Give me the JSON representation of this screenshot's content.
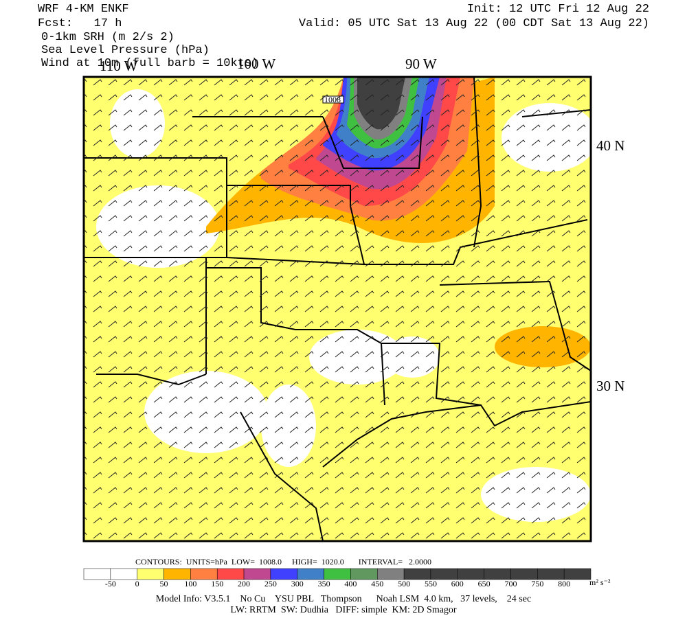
{
  "header": {
    "model": "WRF 4-KM ENKF",
    "forecast": "Fcst:   17 h",
    "fields": [
      "0-1km SRH (m 2/s 2)",
      "Sea Level Pressure (hPa)",
      "Wind at 10m (full barb = 10kts)"
    ],
    "init": "Init: 12 UTC Fri 12 Aug 22",
    "valid": "Valid: 05 UTC Sat 13 Aug 22 (00 CDT Sat 13 Aug 22)"
  },
  "map": {
    "lon_labels": [
      "110 W",
      "100 W",
      "90 W"
    ],
    "lat_labels": [
      "40 N",
      "30 N"
    ],
    "contour_label": "1008"
  },
  "contours": "CONTOURS:  UNITS=hPa  LOW=  1008.0     HIGH=  1020.0       INTERVAL=   2.0000",
  "colorbar": {
    "levels": [
      -50,
      0,
      50,
      100,
      150,
      200,
      250,
      300,
      350,
      400,
      450,
      500,
      550,
      600,
      650,
      700,
      750,
      800
    ],
    "units": "m² s⁻²",
    "colors": [
      "#ffffff",
      "#ffffff",
      "#ffff70",
      "#ffb400",
      "#ff8040",
      "#ff4848",
      "#c04890",
      "#4040ff",
      "#4080c8",
      "#40c040",
      "#609860",
      "#808080",
      "#404040",
      "#404040",
      "#404040",
      "#404040",
      "#404040",
      "#404040",
      "#404040"
    ]
  },
  "footer": [
    "Model Info: V3.5.1    No Cu    YSU PBL   Thompson      Noah LSM  4.0 km,   37 levels,    24 sec",
    "LW: RRTM  SW: Dudhia   DIFF: simple  KM: 2D Smagor"
  ]
}
